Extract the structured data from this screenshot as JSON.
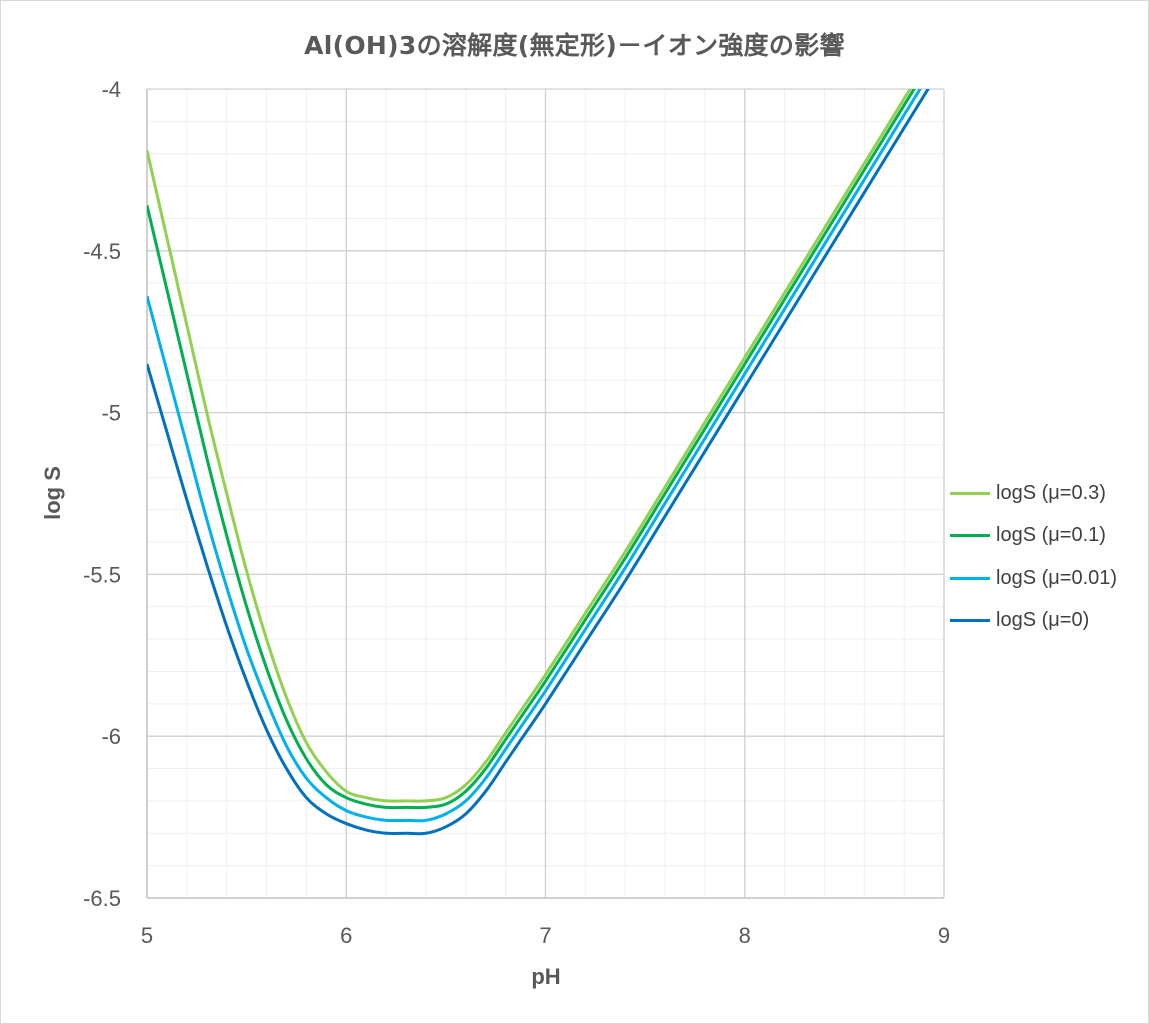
{
  "chart_data": {
    "type": "line",
    "title": "Al(OH)3の溶解度(無定形)－イオン強度の影響",
    "xlabel": "pH",
    "ylabel": "log S",
    "xlim": [
      5,
      9
    ],
    "ylim": [
      -6.5,
      -4
    ],
    "x_ticks": [
      "5",
      "6",
      "7",
      "8",
      "9"
    ],
    "y_ticks": [
      "-4",
      "-4.5",
      "-5",
      "-5.5",
      "-6",
      "-6.5"
    ],
    "x_minor_step": 0.2,
    "y_minor_step": 0.1,
    "grid": true,
    "legend_position": "right",
    "x": [
      5.0,
      5.1,
      5.2,
      5.3,
      5.4,
      5.5,
      5.6,
      5.7,
      5.8,
      5.9,
      6.0,
      6.1,
      6.2,
      6.3,
      6.4,
      6.5,
      6.6,
      6.7,
      6.8,
      6.9,
      7.0,
      7.2,
      7.4,
      7.6,
      7.8,
      8.0,
      8.2,
      8.4,
      8.6,
      8.8,
      9.0
    ],
    "series": [
      {
        "name": "logS (μ=0.3)",
        "color": "#92d050",
        "values": [
          -4.19,
          -4.46,
          -4.73,
          -5.0,
          -5.25,
          -5.49,
          -5.7,
          -5.88,
          -6.02,
          -6.11,
          -6.17,
          -6.19,
          -6.2,
          -6.2,
          -6.2,
          -6.19,
          -6.15,
          -6.08,
          -5.99,
          -5.9,
          -5.81,
          -5.62,
          -5.43,
          -5.23,
          -5.03,
          -4.83,
          -4.63,
          -4.43,
          -4.23,
          -4.03,
          -3.83
        ]
      },
      {
        "name": "logS (μ=0.1)",
        "color": "#00b050",
        "values": [
          -4.36,
          -4.62,
          -4.88,
          -5.14,
          -5.38,
          -5.6,
          -5.79,
          -5.95,
          -6.07,
          -6.15,
          -6.19,
          -6.21,
          -6.22,
          -6.22,
          -6.22,
          -6.21,
          -6.17,
          -6.1,
          -6.01,
          -5.92,
          -5.83,
          -5.64,
          -5.45,
          -5.25,
          -5.05,
          -4.85,
          -4.65,
          -4.45,
          -4.25,
          -4.05,
          -3.85
        ]
      },
      {
        "name": "logS (μ=0.01)",
        "color": "#00b0f0",
        "values": [
          -4.64,
          -4.87,
          -5.1,
          -5.33,
          -5.54,
          -5.73,
          -5.89,
          -6.03,
          -6.13,
          -6.19,
          -6.23,
          -6.25,
          -6.26,
          -6.26,
          -6.26,
          -6.24,
          -6.2,
          -6.13,
          -6.04,
          -5.95,
          -5.86,
          -5.67,
          -5.48,
          -5.28,
          -5.08,
          -4.88,
          -4.68,
          -4.48,
          -4.28,
          -4.08,
          -3.88
        ]
      },
      {
        "name": "logS (μ=0)",
        "color": "#0070c0",
        "values": [
          -4.85,
          -5.06,
          -5.27,
          -5.47,
          -5.66,
          -5.83,
          -5.98,
          -6.1,
          -6.19,
          -6.24,
          -6.27,
          -6.29,
          -6.3,
          -6.3,
          -6.3,
          -6.28,
          -6.24,
          -6.17,
          -6.08,
          -5.99,
          -5.9,
          -5.71,
          -5.52,
          -5.32,
          -5.12,
          -4.92,
          -4.72,
          -4.52,
          -4.32,
          -4.12,
          -3.92
        ]
      }
    ]
  }
}
